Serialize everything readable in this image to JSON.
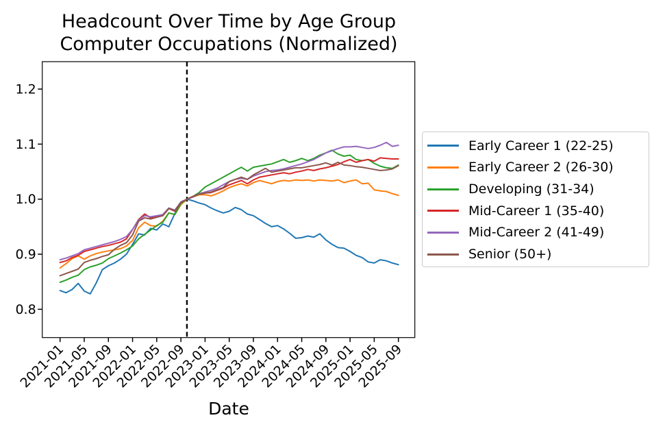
{
  "title": {
    "line1": "Headcount Over Time by Age Group",
    "line2": "Computer Occupations (Normalized)"
  },
  "chart_data": {
    "type": "line",
    "title": "Headcount Over Time by Age Group\nComputer Occupations (Normalized)",
    "xlabel": "Date",
    "ylabel": "",
    "grid": false,
    "legend_position": "right-outside",
    "ylim": [
      0.75,
      1.25
    ],
    "y_ticks": [
      0.8,
      0.9,
      1.0,
      1.1,
      1.2
    ],
    "x_tick_labels": [
      "2021-01",
      "2021-05",
      "2021-09",
      "2022-01",
      "2022-05",
      "2022-09",
      "2023-01",
      "2023-05",
      "2023-09",
      "2024-01",
      "2024-05",
      "2024-09",
      "2025-01",
      "2025-05",
      "2025-09"
    ],
    "x": [
      "2021-01",
      "2021-02",
      "2021-03",
      "2021-04",
      "2021-05",
      "2021-06",
      "2021-07",
      "2021-08",
      "2021-09",
      "2021-10",
      "2021-11",
      "2021-12",
      "2022-01",
      "2022-02",
      "2022-03",
      "2022-04",
      "2022-05",
      "2022-06",
      "2022-07",
      "2022-08",
      "2022-09",
      "2022-10",
      "2022-11",
      "2022-12",
      "2023-01",
      "2023-02",
      "2023-03",
      "2023-04",
      "2023-05",
      "2023-06",
      "2023-07",
      "2023-08",
      "2023-09",
      "2023-10",
      "2023-11",
      "2023-12",
      "2024-01",
      "2024-02",
      "2024-03",
      "2024-04",
      "2024-05",
      "2024-06",
      "2024-07",
      "2024-08",
      "2024-09",
      "2024-10",
      "2024-11",
      "2024-12",
      "2025-01",
      "2025-02",
      "2025-03",
      "2025-04",
      "2025-05",
      "2025-06",
      "2025-07",
      "2025-08",
      "2025-09"
    ],
    "reference_line": {
      "x": "2022-10",
      "index": 21,
      "style": "dashed",
      "color": "#000000",
      "note": "normalization point, all series = 1.0"
    },
    "series": [
      {
        "name": "Early Career 1 (22-25)",
        "color": "#1f77b4",
        "values": [
          0.834,
          0.83,
          0.836,
          0.847,
          0.833,
          0.828,
          0.848,
          0.872,
          0.879,
          0.884,
          0.891,
          0.9,
          0.918,
          0.937,
          0.935,
          0.947,
          0.944,
          0.955,
          0.95,
          0.974,
          0.991,
          1.0,
          0.997,
          0.993,
          0.99,
          0.984,
          0.979,
          0.975,
          0.978,
          0.985,
          0.981,
          0.973,
          0.97,
          0.963,
          0.956,
          0.95,
          0.952,
          0.946,
          0.938,
          0.929,
          0.93,
          0.933,
          0.931,
          0.937,
          0.926,
          0.918,
          0.912,
          0.911,
          0.905,
          0.898,
          0.894,
          0.886,
          0.884,
          0.89,
          0.888,
          0.884,
          0.881
        ]
      },
      {
        "name": "Early Career 2 (26-30)",
        "color": "#ff7f0e",
        "values": [
          0.875,
          0.883,
          0.892,
          0.897,
          0.891,
          0.897,
          0.901,
          0.904,
          0.906,
          0.908,
          0.91,
          0.915,
          0.925,
          0.948,
          0.958,
          0.952,
          0.951,
          0.96,
          0.975,
          0.972,
          0.99,
          1.0,
          1.004,
          1.008,
          1.008,
          1.006,
          1.01,
          1.015,
          1.021,
          1.025,
          1.028,
          1.024,
          1.03,
          1.034,
          1.031,
          1.028,
          1.032,
          1.034,
          1.033,
          1.035,
          1.034,
          1.035,
          1.033,
          1.035,
          1.034,
          1.033,
          1.035,
          1.03,
          1.033,
          1.035,
          1.028,
          1.029,
          1.017,
          1.015,
          1.014,
          1.01,
          1.007
        ]
      },
      {
        "name": "Developing (31-34)",
        "color": "#2ca02c",
        "values": [
          0.849,
          0.853,
          0.858,
          0.862,
          0.872,
          0.877,
          0.88,
          0.884,
          0.892,
          0.897,
          0.902,
          0.908,
          0.915,
          0.928,
          0.936,
          0.944,
          0.952,
          0.958,
          0.975,
          0.972,
          0.992,
          1.0,
          1.005,
          1.012,
          1.022,
          1.028,
          1.034,
          1.04,
          1.046,
          1.052,
          1.058,
          1.051,
          1.058,
          1.06,
          1.062,
          1.064,
          1.068,
          1.072,
          1.067,
          1.07,
          1.074,
          1.07,
          1.074,
          1.08,
          1.084,
          1.089,
          1.082,
          1.078,
          1.08,
          1.072,
          1.07,
          1.072,
          1.065,
          1.06,
          1.057,
          1.056,
          1.062
        ]
      },
      {
        "name": "Mid-Career 1 (35-40)",
        "color": "#d62728",
        "values": [
          0.885,
          0.888,
          0.894,
          0.898,
          0.905,
          0.908,
          0.911,
          0.914,
          0.916,
          0.919,
          0.922,
          0.928,
          0.945,
          0.963,
          0.973,
          0.966,
          0.968,
          0.97,
          0.983,
          0.978,
          0.994,
          1.0,
          1.005,
          1.009,
          1.011,
          1.012,
          1.016,
          1.02,
          1.026,
          1.03,
          1.034,
          1.028,
          1.035,
          1.04,
          1.042,
          1.044,
          1.046,
          1.048,
          1.046,
          1.049,
          1.051,
          1.054,
          1.052,
          1.055,
          1.057,
          1.06,
          1.063,
          1.068,
          1.072,
          1.067,
          1.07,
          1.072,
          1.069,
          1.075,
          1.074,
          1.073,
          1.073
        ]
      },
      {
        "name": "Mid-Career 2 (41-49)",
        "color": "#9467bd",
        "values": [
          0.89,
          0.893,
          0.897,
          0.901,
          0.908,
          0.911,
          0.914,
          0.917,
          0.92,
          0.923,
          0.927,
          0.932,
          0.945,
          0.962,
          0.97,
          0.968,
          0.97,
          0.972,
          0.984,
          0.98,
          0.995,
          1.0,
          1.004,
          1.01,
          1.013,
          1.016,
          1.02,
          1.026,
          1.032,
          1.036,
          1.038,
          1.036,
          1.042,
          1.046,
          1.05,
          1.052,
          1.053,
          1.055,
          1.058,
          1.061,
          1.064,
          1.068,
          1.072,
          1.078,
          1.084,
          1.088,
          1.092,
          1.095,
          1.095,
          1.096,
          1.094,
          1.092,
          1.094,
          1.098,
          1.103,
          1.096,
          1.098
        ]
      },
      {
        "name": "Senior (50+)",
        "color": "#8c564b",
        "values": [
          0.861,
          0.865,
          0.869,
          0.873,
          0.885,
          0.889,
          0.892,
          0.896,
          0.899,
          0.909,
          0.916,
          0.921,
          0.935,
          0.96,
          0.966,
          0.964,
          0.967,
          0.97,
          0.983,
          0.979,
          0.994,
          1.0,
          1.005,
          1.009,
          1.011,
          1.013,
          1.017,
          1.021,
          1.032,
          1.036,
          1.04,
          1.036,
          1.044,
          1.05,
          1.056,
          1.049,
          1.051,
          1.053,
          1.055,
          1.057,
          1.057,
          1.059,
          1.061,
          1.063,
          1.066,
          1.062,
          1.067,
          1.062,
          1.061,
          1.059,
          1.058,
          1.056,
          1.054,
          1.052,
          1.053,
          1.055,
          1.061
        ]
      }
    ]
  }
}
